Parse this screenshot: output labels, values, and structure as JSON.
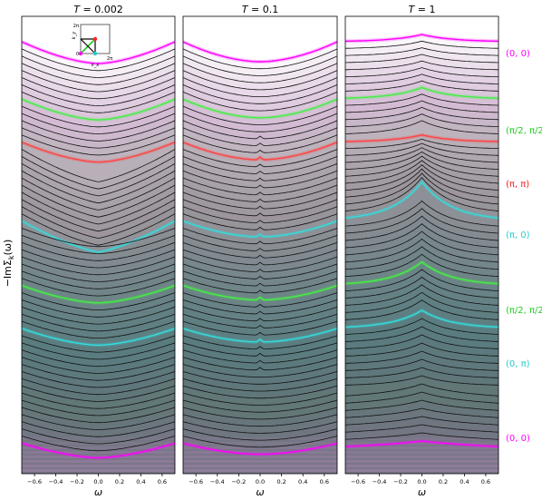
{
  "figure": {
    "ylabel": "−ImΣ_k(ω)",
    "ylabel_display": "−ImΣ",
    "ylabel_sub": "k",
    "ylabel_tail": "(ω)"
  },
  "chart_data": [
    {
      "type": "line",
      "title": "T = 0.002",
      "title_parts": {
        "var": "T",
        "rest": " = 0.002"
      },
      "xlabel": "ω",
      "xlim": [
        -0.72,
        0.72
      ],
      "xticks": [
        "−0.6",
        "−0.4",
        "−0.2",
        "0.0",
        "0.2",
        "0.4",
        "0.6"
      ],
      "xtick_values": [
        -0.6,
        -0.4,
        -0.2,
        0.0,
        0.2,
        0.4,
        0.6
      ],
      "n_curves": 57,
      "highlighted_curves": [
        {
          "index": 0,
          "color": "#ff00ff",
          "k": "(0, 0)"
        },
        {
          "index": 8,
          "color": "#44ee44",
          "k": "(π/2, π/2)"
        },
        {
          "index": 14,
          "color": "#ff4444",
          "k": "(π, π)"
        },
        {
          "index": 25,
          "color": "#33dddd",
          "k": "(π, 0)"
        },
        {
          "index": 34,
          "color": "#44ee44",
          "k": "(π/2, π/2)"
        },
        {
          "index": 40,
          "color": "#33dddd",
          "k": "(0, π)"
        },
        {
          "index": 56,
          "color": "#ff00ff",
          "k": "(0, 0)"
        }
      ],
      "inset": {
        "xlabel": "k_x",
        "ylabel": "k_y",
        "tick_0": "0",
        "tick_2pi": "2π",
        "path_points": [
          "(0,0)",
          "(π,π)",
          "(π,0)",
          "(0,π)"
        ]
      }
    },
    {
      "type": "line",
      "title": "T = 0.1",
      "title_parts": {
        "var": "T",
        "rest": " = 0.1"
      },
      "xlabel": "ω",
      "xlim": [
        -0.72,
        0.72
      ],
      "xticks": [
        "−0.6",
        "−0.4",
        "−0.2",
        "0.0",
        "0.2",
        "0.4",
        "0.6"
      ],
      "xtick_values": [
        -0.6,
        -0.4,
        -0.2,
        0.0,
        0.2,
        0.4,
        0.6
      ],
      "n_curves": 57,
      "highlighted_curves": [
        {
          "index": 0,
          "color": "#ff00ff",
          "k": "(0, 0)"
        },
        {
          "index": 8,
          "color": "#44ee44",
          "k": "(π/2, π/2)"
        },
        {
          "index": 14,
          "color": "#ff4444",
          "k": "(π, π)"
        },
        {
          "index": 25,
          "color": "#33dddd",
          "k": "(π, 0)"
        },
        {
          "index": 34,
          "color": "#44ee44",
          "k": "(π/2, π/2)"
        },
        {
          "index": 40,
          "color": "#33dddd",
          "k": "(0, π)"
        },
        {
          "index": 56,
          "color": "#ff00ff",
          "k": "(0, 0)"
        }
      ]
    },
    {
      "type": "line",
      "title": "T = 1",
      "title_parts": {
        "var": "T",
        "rest": " = 1"
      },
      "xlabel": "ω",
      "xlim": [
        -0.72,
        0.72
      ],
      "xticks": [
        "−0.6",
        "−0.4",
        "−0.2",
        "0.0",
        "0.2",
        "0.4",
        "0.6"
      ],
      "xtick_values": [
        -0.6,
        -0.4,
        -0.2,
        0.0,
        0.2,
        0.4,
        0.6
      ],
      "n_curves": 57,
      "highlighted_curves": [
        {
          "index": 0,
          "color": "#ff00ff",
          "k": "(0, 0)"
        },
        {
          "index": 8,
          "color": "#44ee44",
          "k": "(π/2, π/2)"
        },
        {
          "index": 14,
          "color": "#ff4444",
          "k": "(π, π)"
        },
        {
          "index": 25,
          "color": "#33dddd",
          "k": "(π, 0)"
        },
        {
          "index": 34,
          "color": "#44ee44",
          "k": "(π/2, π/2)"
        },
        {
          "index": 40,
          "color": "#33dddd",
          "k": "(0, π)"
        },
        {
          "index": 56,
          "color": "#ff00ff",
          "k": "(0, 0)"
        }
      ]
    }
  ],
  "k_labels": [
    {
      "text": "(0, 0)",
      "color": "#ff00ff"
    },
    {
      "text": "(π/2, π/2",
      "color": "#22cc22"
    },
    {
      "text": "(π, π)",
      "color": "#ee2222"
    },
    {
      "text": "(π, 0)",
      "color": "#22cccc"
    },
    {
      "text": "(π/2, π/2",
      "color": "#22cc22"
    },
    {
      "text": "(0, π)",
      "color": "#22cccc"
    },
    {
      "text": "(0, 0)",
      "color": "#ff00ff"
    }
  ]
}
